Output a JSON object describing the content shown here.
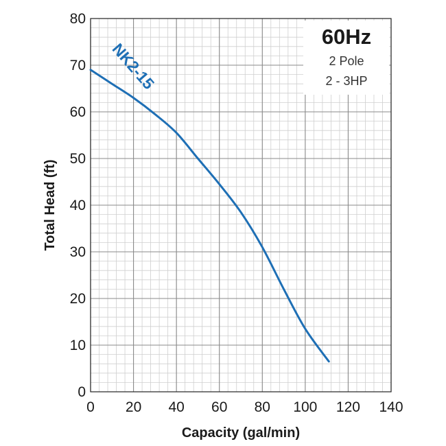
{
  "chart_data": {
    "type": "line",
    "xlabel": "Capacity (gal/min)",
    "ylabel": "Total Head (ft)",
    "xlim": [
      0,
      140
    ],
    "ylim": [
      0,
      80
    ],
    "x_ticks": [
      "0",
      "20",
      "40",
      "60",
      "80",
      "100",
      "120",
      "140"
    ],
    "y_ticks": [
      "0",
      "10",
      "20",
      "30",
      "40",
      "50",
      "60",
      "70",
      "80"
    ],
    "grid": true,
    "annotation": {
      "lines": [
        "60Hz",
        "2 Pole",
        "2 - 3HP"
      ]
    },
    "series": [
      {
        "name": "NK2-15",
        "color": "#1e6fb5",
        "x": [
          0,
          10,
          20,
          30,
          40,
          50,
          60,
          70,
          80,
          90,
          100,
          111
        ],
        "y": [
          69,
          66,
          63,
          59.5,
          55.5,
          50,
          44.5,
          38.5,
          31,
          22,
          13.5,
          6.5
        ]
      }
    ]
  }
}
